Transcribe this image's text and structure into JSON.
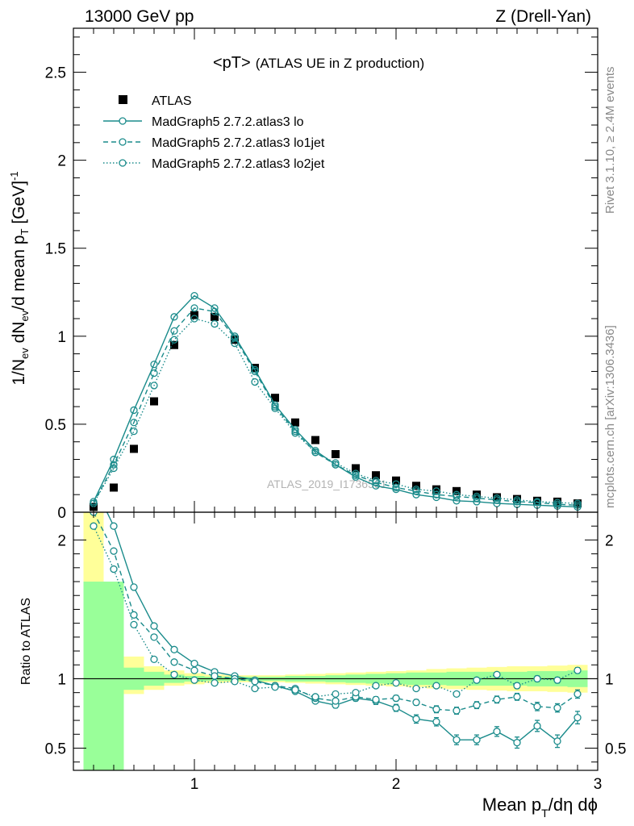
{
  "header": {
    "left": "13000 GeV pp",
    "right": "Z (Drell-Yan)"
  },
  "side_text": {
    "top": "Rivet 3.1.10, ≥ 2.4M events",
    "bottom": "mcplots.cern.ch [arXiv:1306.3436]"
  },
  "watermark": "ATLAS_2019_I1736531",
  "colors": {
    "mc": "#1a8b8b",
    "data": "#000000",
    "band_inner": "#99ff99",
    "band_outer": "#ffff99"
  },
  "chart_data": [
    {
      "type": "line",
      "title": "<pT>",
      "subtitle": "(ATLAS UE in Z production)",
      "ylabel": "1/N_ev dN_ev/d mean p_T [GeV]^-1",
      "xlabel": "Mean p_T/dη dϕ",
      "xlim": [
        0.4,
        3.0
      ],
      "ylim": [
        0,
        2.75
      ],
      "yticks": [
        0,
        0.5,
        1,
        1.5,
        2,
        2.5
      ],
      "ytick_labels": [
        "0",
        "0.5",
        "1",
        "1.5",
        "2",
        "2.5"
      ],
      "legend_position": "top-left",
      "x": [
        0.5,
        0.6,
        0.7,
        0.8,
        0.9,
        1.0,
        1.1,
        1.2,
        1.3,
        1.4,
        1.5,
        1.6,
        1.7,
        1.8,
        1.9,
        2.0,
        2.1,
        2.2,
        2.3,
        2.4,
        2.5,
        2.6,
        2.7,
        2.8,
        2.9
      ],
      "series": [
        {
          "name": "ATLAS",
          "style": "data",
          "values": [
            0.03,
            0.14,
            0.36,
            0.63,
            0.95,
            1.12,
            1.11,
            0.98,
            0.82,
            0.65,
            0.51,
            0.41,
            0.33,
            0.25,
            0.21,
            0.18,
            0.15,
            0.13,
            0.12,
            0.1,
            0.085,
            0.075,
            0.065,
            0.06,
            0.05
          ]
        },
        {
          "name": "MadGraph5 2.7.2.atlas3 lo",
          "style": "solid",
          "values": [
            0.06,
            0.3,
            0.58,
            0.84,
            1.11,
            1.23,
            1.16,
            1.0,
            0.81,
            0.61,
            0.47,
            0.35,
            0.27,
            0.2,
            0.15,
            0.13,
            0.1,
            0.085,
            0.065,
            0.06,
            0.05,
            0.045,
            0.04,
            0.035,
            0.03
          ]
        },
        {
          "name": "MadGraph5 2.7.2.atlas3 lo1jet",
          "style": "dashed",
          "values": [
            0.05,
            0.27,
            0.51,
            0.79,
            1.03,
            1.16,
            1.14,
            0.99,
            0.8,
            0.6,
            0.46,
            0.34,
            0.27,
            0.21,
            0.17,
            0.14,
            0.12,
            0.1,
            0.09,
            0.08,
            0.07,
            0.06,
            0.055,
            0.045,
            0.04
          ]
        },
        {
          "name": "MadGraph5 2.7.2.atlas3 lo2jet",
          "style": "dotted",
          "values": [
            0.05,
            0.25,
            0.46,
            0.72,
            0.98,
            1.1,
            1.07,
            0.96,
            0.74,
            0.59,
            0.45,
            0.34,
            0.28,
            0.22,
            0.18,
            0.16,
            0.13,
            0.12,
            0.1,
            0.09,
            0.08,
            0.07,
            0.06,
            0.055,
            0.05
          ]
        }
      ]
    },
    {
      "type": "line",
      "ylabel": "Ratio to ATLAS",
      "xlabel": "Mean p_T/dη dϕ",
      "xlim": [
        0.4,
        3.0
      ],
      "ylim": [
        0.34,
        2.2
      ],
      "xticks": [
        1,
        2,
        3
      ],
      "xtick_labels": [
        "1",
        "2",
        "3"
      ],
      "yticks": [
        0.5,
        1,
        2
      ],
      "ytick_labels": [
        "0.5",
        "1",
        "2"
      ],
      "reference_line": 1,
      "bins": [
        0.45,
        0.55,
        0.65,
        0.75,
        0.85,
        0.95,
        1.05,
        1.15,
        1.25,
        1.35,
        1.45,
        1.55,
        1.65,
        1.75,
        1.85,
        1.95,
        2.05,
        2.15,
        2.25,
        2.35,
        2.45,
        2.55,
        2.65,
        2.75,
        2.85,
        2.95
      ],
      "band_inner": {
        "lo": [
          0.34,
          0.34,
          0.92,
          0.95,
          0.97,
          0.98,
          0.985,
          0.985,
          0.985,
          0.985,
          0.98,
          0.98,
          0.975,
          0.97,
          0.965,
          0.96,
          0.955,
          0.955,
          0.95,
          0.95,
          0.95,
          0.95,
          0.945,
          0.945,
          0.94
        ],
        "hi": [
          1.7,
          1.7,
          1.08,
          1.05,
          1.03,
          1.02,
          1.015,
          1.015,
          1.015,
          1.015,
          1.02,
          1.02,
          1.025,
          1.03,
          1.035,
          1.04,
          1.045,
          1.045,
          1.05,
          1.05,
          1.05,
          1.05,
          1.055,
          1.055,
          1.06
        ]
      },
      "band_outer": {
        "lo": [
          0.34,
          0.82,
          0.89,
          0.92,
          0.95,
          0.96,
          0.97,
          0.975,
          0.975,
          0.975,
          0.97,
          0.965,
          0.96,
          0.955,
          0.95,
          0.945,
          0.94,
          0.93,
          0.925,
          0.92,
          0.915,
          0.91,
          0.91,
          0.905,
          0.9
        ],
        "hi": [
          2.2,
          1.27,
          1.16,
          1.09,
          1.06,
          1.04,
          1.03,
          1.025,
          1.025,
          1.025,
          1.03,
          1.035,
          1.04,
          1.045,
          1.05,
          1.055,
          1.06,
          1.07,
          1.075,
          1.08,
          1.085,
          1.09,
          1.09,
          1.095,
          1.1
        ]
      },
      "x": [
        0.5,
        0.6,
        0.7,
        0.8,
        0.9,
        1.0,
        1.1,
        1.2,
        1.3,
        1.4,
        1.5,
        1.6,
        1.7,
        1.8,
        1.9,
        2.0,
        2.1,
        2.2,
        2.3,
        2.4,
        2.5,
        2.6,
        2.7,
        2.8,
        2.9
      ],
      "series": [
        {
          "name": "MadGraph5 2.7.2.atlas3 lo",
          "style": "solid",
          "values": [
            2.4,
            2.1,
            1.66,
            1.38,
            1.21,
            1.11,
            1.05,
            1.02,
            0.99,
            0.95,
            0.91,
            0.84,
            0.81,
            0.86,
            0.84,
            0.79,
            0.71,
            0.69,
            0.56,
            0.56,
            0.62,
            0.54,
            0.66,
            0.55,
            0.72
          ],
          "errors": [
            0,
            0,
            0,
            0,
            0,
            0,
            0,
            0,
            0,
            0,
            0,
            0.015,
            0.02,
            0.02,
            0.025,
            0.025,
            0.03,
            0.03,
            0.035,
            0.035,
            0.035,
            0.04,
            0.04,
            0.045,
            0.045
          ]
        },
        {
          "name": "MadGraph5 2.7.2.atlas3 lo1jet",
          "style": "dashed",
          "values": [
            2.2,
            1.92,
            1.46,
            1.3,
            1.12,
            1.06,
            1.02,
            1.0,
            0.98,
            0.95,
            0.93,
            0.86,
            0.84,
            0.87,
            0.85,
            0.86,
            0.83,
            0.78,
            0.77,
            0.81,
            0.85,
            0.87,
            0.8,
            0.79,
            0.89
          ],
          "errors": [
            0,
            0,
            0,
            0,
            0,
            0,
            0,
            0,
            0,
            0,
            0,
            0.015,
            0.015,
            0.015,
            0.02,
            0.02,
            0.02,
            0.025,
            0.025,
            0.025,
            0.025,
            0.025,
            0.03,
            0.03,
            0.03
          ]
        },
        {
          "name": "MadGraph5 2.7.2.atlas3 lo2jet",
          "style": "dotted",
          "values": [
            2.1,
            1.79,
            1.39,
            1.14,
            1.03,
            0.99,
            0.97,
            0.98,
            0.93,
            0.94,
            0.92,
            0.87,
            0.89,
            0.9,
            0.95,
            0.97,
            0.93,
            0.95,
            0.89,
            0.99,
            1.03,
            0.95,
            1.0,
            0.99,
            1.06
          ],
          "errors": [
            0,
            0,
            0,
            0,
            0,
            0,
            0,
            0,
            0,
            0,
            0,
            0.01,
            0.01,
            0.01,
            0.01,
            0.01,
            0.015,
            0.015,
            0.015,
            0.015,
            0.015,
            0.02,
            0.02,
            0.02,
            0.02
          ]
        }
      ]
    }
  ]
}
